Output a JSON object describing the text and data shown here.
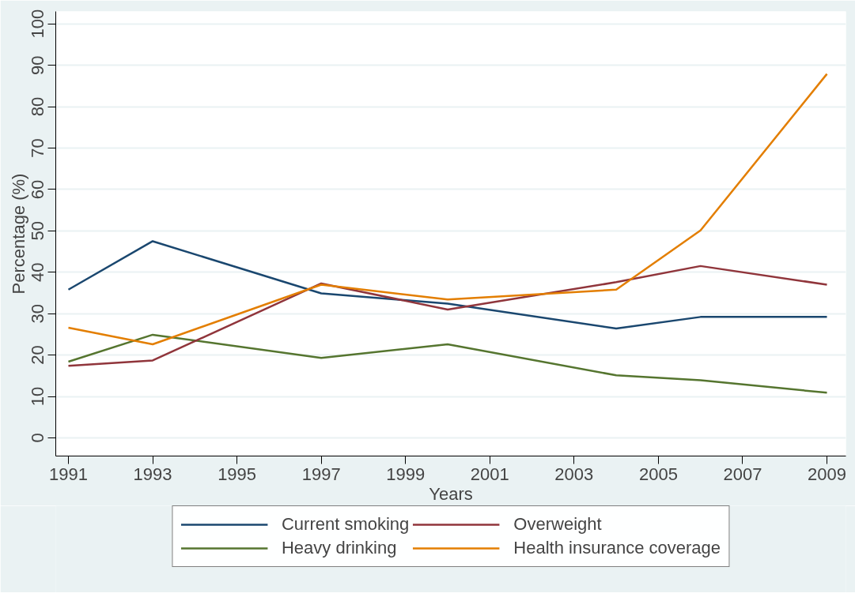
{
  "chart_data": {
    "type": "line",
    "xlabel": "Years",
    "ylabel": "Percentage (%)",
    "x": [
      1991,
      1993,
      1997,
      2000,
      2004,
      2006,
      2009
    ],
    "series": [
      {
        "name": "Current smoking",
        "color": "#1a476f",
        "values": [
          35.8,
          47.5,
          34.9,
          32.4,
          26.4,
          29.2,
          29.2
        ]
      },
      {
        "name": "Heavy drinking",
        "color": "#55752f",
        "values": [
          18.4,
          24.9,
          19.3,
          22.6,
          15.1,
          13.9,
          10.9
        ]
      },
      {
        "name": "Overweight",
        "color": "#90353b",
        "values": [
          17.4,
          18.7,
          37.3,
          31.0,
          37.6,
          41.5,
          37.0
        ]
      },
      {
        "name": "Health insurance coverage",
        "color": "#e37e00",
        "values": [
          26.6,
          22.6,
          37.0,
          33.4,
          35.8,
          50.1,
          87.9
        ]
      }
    ],
    "xlim": [
      1990.7,
      2009.45
    ],
    "xticks": [
      1991,
      1993,
      1995,
      1997,
      1999,
      2001,
      2003,
      2005,
      2007,
      2009
    ],
    "ylim": [
      -4.4,
      103
    ],
    "yticks": [
      0,
      10,
      20,
      30,
      40,
      50,
      60,
      70,
      80,
      90,
      100
    ],
    "grid": "y",
    "legend": "bottom",
    "line_style": "solid",
    "marker": "none"
  }
}
